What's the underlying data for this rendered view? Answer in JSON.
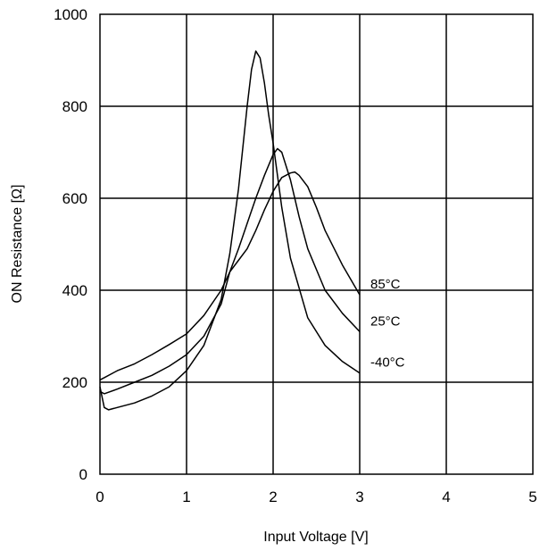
{
  "chart_data": {
    "type": "line",
    "title": "",
    "xlabel": "Input Voltage [V]",
    "ylabel": "ON Resistance [Ω]",
    "xlim": [
      0,
      5
    ],
    "ylim": [
      0,
      1000
    ],
    "xticks": [
      "0",
      "1",
      "2",
      "3",
      "4",
      "5"
    ],
    "yticks": [
      "0",
      "200",
      "400",
      "600",
      "800",
      "1000"
    ],
    "grid": true,
    "series": [
      {
        "name": "85°C",
        "x": [
          0,
          0.05,
          0.2,
          0.4,
          0.6,
          0.8,
          1.0,
          1.2,
          1.4,
          1.5,
          1.6,
          1.7,
          1.8,
          1.9,
          2.0,
          2.1,
          2.2,
          2.25,
          2.3,
          2.4,
          2.5,
          2.6,
          2.8,
          3.0
        ],
        "y": [
          205,
          210,
          225,
          240,
          260,
          282,
          305,
          345,
          400,
          440,
          465,
          490,
          530,
          575,
          615,
          645,
          655,
          657,
          650,
          625,
          580,
          530,
          455,
          390
        ]
      },
      {
        "name": "25°C",
        "x": [
          0,
          0.05,
          0.2,
          0.4,
          0.6,
          0.8,
          1.0,
          1.2,
          1.4,
          1.5,
          1.6,
          1.7,
          1.8,
          1.9,
          2.0,
          2.05,
          2.1,
          2.2,
          2.3,
          2.4,
          2.6,
          2.8,
          3.0
        ],
        "y": [
          180,
          175,
          185,
          200,
          215,
          235,
          260,
          300,
          370,
          440,
          490,
          545,
          600,
          650,
          695,
          708,
          700,
          640,
          560,
          490,
          400,
          350,
          310
        ]
      },
      {
        "name": "-40°C",
        "x": [
          0,
          0.05,
          0.1,
          0.2,
          0.4,
          0.6,
          0.8,
          1.0,
          1.2,
          1.4,
          1.5,
          1.6,
          1.7,
          1.75,
          1.8,
          1.85,
          1.9,
          1.95,
          2.0,
          2.1,
          2.2,
          2.4,
          2.6,
          2.8,
          3.0
        ],
        "y": [
          190,
          145,
          140,
          145,
          155,
          170,
          190,
          225,
          280,
          380,
          480,
          620,
          800,
          880,
          920,
          905,
          850,
          780,
          720,
          580,
          470,
          340,
          280,
          245,
          220
        ]
      }
    ],
    "legend": "inline-right"
  }
}
